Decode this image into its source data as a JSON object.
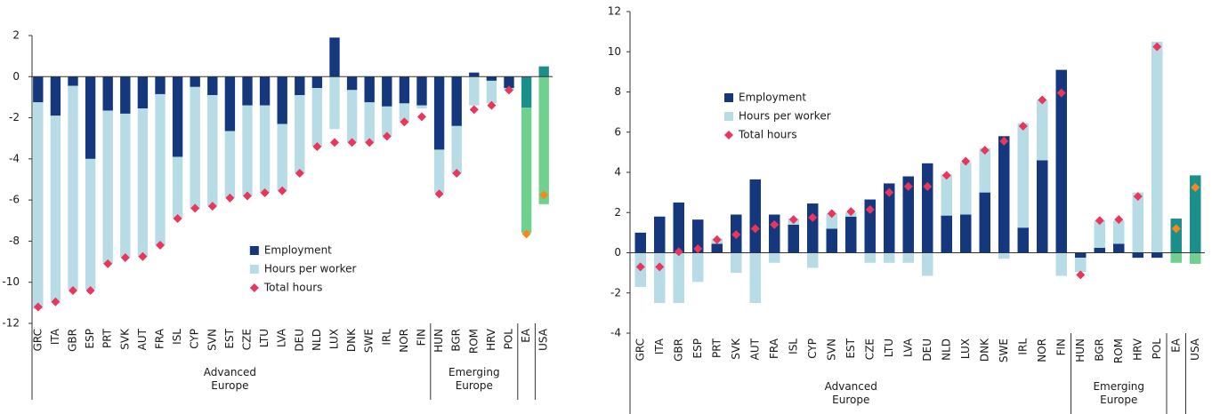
{
  "chart_data": [
    {
      "type": "bar",
      "stacked": true,
      "legend": "lower center",
      "categories": [
        "GRC",
        "ITA",
        "GBR",
        "ESP",
        "PRT",
        "SVK",
        "AUT",
        "FRA",
        "ISL",
        "CYP",
        "SVN",
        "EST",
        "CZE",
        "LTU",
        "LVA",
        "DEU",
        "NLD",
        "LUX",
        "DNK",
        "SWE",
        "IRL",
        "NOR",
        "FIN",
        "HUN",
        "BGR",
        "ROM",
        "HRV",
        "POL",
        "EA",
        "USA"
      ],
      "groups": [
        {
          "label": "Advanced Europe",
          "span": [
            0,
            22
          ]
        },
        {
          "label": "Emerging Europe",
          "span": [
            23,
            27
          ]
        }
      ],
      "ylim": [
        -12,
        2
      ],
      "yticks": [
        -12,
        -10,
        -8,
        -6,
        -4,
        -2,
        0,
        2
      ],
      "series": [
        {
          "name": "Employment",
          "kind": "bar",
          "color": "#14377d",
          "colors": [
            "#14377d",
            "#14377d",
            "#14377d",
            "#14377d",
            "#14377d",
            "#14377d",
            "#14377d",
            "#14377d",
            "#14377d",
            "#14377d",
            "#14377d",
            "#14377d",
            "#14377d",
            "#14377d",
            "#14377d",
            "#14377d",
            "#14377d",
            "#14377d",
            "#14377d",
            "#14377d",
            "#14377d",
            "#14377d",
            "#14377d",
            "#14377d",
            "#14377d",
            "#14377d",
            "#14377d",
            "#14377d",
            "#1b8f8c",
            "#1b8f8c"
          ],
          "values": [
            -1.25,
            -1.9,
            -0.45,
            -4.0,
            -1.65,
            -1.8,
            -1.55,
            -0.85,
            -3.9,
            -0.5,
            -0.9,
            -2.65,
            -1.4,
            -1.4,
            -2.3,
            -0.9,
            -0.55,
            1.9,
            -0.65,
            -1.25,
            -1.45,
            -1.3,
            -1.4,
            -3.55,
            -2.4,
            0.2,
            -0.2,
            -0.55,
            -1.5,
            0.5
          ]
        },
        {
          "name": "Hours per worker",
          "kind": "bar",
          "color": "#b8dce6",
          "colors": [
            "#b8dce6",
            "#b8dce6",
            "#b8dce6",
            "#b8dce6",
            "#b8dce6",
            "#b8dce6",
            "#b8dce6",
            "#b8dce6",
            "#b8dce6",
            "#b8dce6",
            "#b8dce6",
            "#b8dce6",
            "#b8dce6",
            "#b8dce6",
            "#b8dce6",
            "#b8dce6",
            "#b8dce6",
            "#b8dce6",
            "#b8dce6",
            "#b8dce6",
            "#b8dce6",
            "#b8dce6",
            "#b8dce6",
            "#b8dce6",
            "#b8dce6",
            "#b8dce6",
            "#b8dce6",
            "#b8dce6",
            "#6fd08f",
            "#6fd08f"
          ],
          "values": [
            -10.05,
            -9.0,
            -9.9,
            -6.35,
            -7.45,
            -7.0,
            -7.2,
            -7.35,
            -3.0,
            -5.95,
            -5.4,
            -3.25,
            -4.4,
            -4.25,
            -3.25,
            -3.8,
            -2.85,
            -2.55,
            -2.55,
            -1.95,
            -1.45,
            -0.9,
            -0.15,
            -2.1,
            -2.3,
            -1.4,
            -1.1,
            -0.1,
            -6.1,
            -6.2
          ]
        },
        {
          "name": "Total hours",
          "kind": "marker",
          "color": "#e8365d",
          "colors": [
            "#e8365d",
            "#e8365d",
            "#e8365d",
            "#e8365d",
            "#e8365d",
            "#e8365d",
            "#e8365d",
            "#e8365d",
            "#e8365d",
            "#e8365d",
            "#e8365d",
            "#e8365d",
            "#e8365d",
            "#e8365d",
            "#e8365d",
            "#e8365d",
            "#e8365d",
            "#e8365d",
            "#e8365d",
            "#e8365d",
            "#e8365d",
            "#e8365d",
            "#e8365d",
            "#e8365d",
            "#e8365d",
            "#e8365d",
            "#e8365d",
            "#e8365d",
            "#f28a1e",
            "#f28a1e"
          ],
          "values": [
            -11.2,
            -10.95,
            -10.4,
            -10.4,
            -9.1,
            -8.8,
            -8.75,
            -8.2,
            -6.9,
            -6.4,
            -6.3,
            -5.9,
            -5.8,
            -5.65,
            -5.55,
            -4.7,
            -3.4,
            -3.2,
            -3.2,
            -3.2,
            -2.9,
            -2.2,
            -1.95,
            -5.7,
            -4.7,
            -1.6,
            -1.4,
            -0.65,
            -7.65,
            -5.75
          ]
        }
      ]
    },
    {
      "type": "bar",
      "stacked": true,
      "legend": "upper left",
      "categories": [
        "GRC",
        "ITA",
        "GBR",
        "ESP",
        "PRT",
        "SVK",
        "AUT",
        "FRA",
        "ISL",
        "CYP",
        "SVN",
        "EST",
        "CZE",
        "LTU",
        "LVA",
        "DEU",
        "NLD",
        "LUX",
        "DNK",
        "SWE",
        "IRL",
        "NOR",
        "FIN",
        "HUN",
        "BGR",
        "ROM",
        "HRV",
        "POL",
        "EA",
        "USA"
      ],
      "groups": [
        {
          "label": "Advanced Europe",
          "span": [
            0,
            22
          ]
        },
        {
          "label": "Emerging Europe",
          "span": [
            23,
            27
          ]
        }
      ],
      "ylim": [
        -4,
        12
      ],
      "yticks": [
        -4,
        -2,
        0,
        2,
        4,
        6,
        8,
        10,
        12
      ],
      "series": [
        {
          "name": "Employment",
          "kind": "bar",
          "color": "#14377d",
          "colors": [
            "#14377d",
            "#14377d",
            "#14377d",
            "#14377d",
            "#14377d",
            "#14377d",
            "#14377d",
            "#14377d",
            "#14377d",
            "#14377d",
            "#14377d",
            "#14377d",
            "#14377d",
            "#14377d",
            "#14377d",
            "#14377d",
            "#14377d",
            "#14377d",
            "#14377d",
            "#14377d",
            "#14377d",
            "#14377d",
            "#14377d",
            "#14377d",
            "#14377d",
            "#14377d",
            "#14377d",
            "#14377d",
            "#1b8f8c",
            "#1b8f8c"
          ],
          "values": [
            1.0,
            1.8,
            2.5,
            1.65,
            0.45,
            1.9,
            3.65,
            1.9,
            1.4,
            2.45,
            1.2,
            1.8,
            2.65,
            3.45,
            3.8,
            4.45,
            1.85,
            1.9,
            3.0,
            5.8,
            1.25,
            4.6,
            9.1,
            -0.25,
            0.25,
            0.45,
            -0.25,
            -0.25,
            1.7,
            3.85
          ]
        },
        {
          "name": "Hours per worker",
          "kind": "bar",
          "color": "#b8dce6",
          "colors": [
            "#b8dce6",
            "#b8dce6",
            "#b8dce6",
            "#b8dce6",
            "#b8dce6",
            "#b8dce6",
            "#b8dce6",
            "#b8dce6",
            "#b8dce6",
            "#b8dce6",
            "#b8dce6",
            "#b8dce6",
            "#b8dce6",
            "#b8dce6",
            "#b8dce6",
            "#b8dce6",
            "#b8dce6",
            "#b8dce6",
            "#b8dce6",
            "#b8dce6",
            "#b8dce6",
            "#b8dce6",
            "#b8dce6",
            "#b8dce6",
            "#b8dce6",
            "#b8dce6",
            "#b8dce6",
            "#b8dce6",
            "#6fd08f",
            "#6fd08f"
          ],
          "values": [
            -1.7,
            -2.5,
            -2.5,
            -1.45,
            0.25,
            -1.0,
            -2.5,
            -0.5,
            0.3,
            -0.75,
            0.75,
            0.2,
            -0.5,
            -0.5,
            -0.5,
            -1.15,
            2.05,
            2.6,
            2.2,
            -0.3,
            5.2,
            3.0,
            -1.15,
            -0.7,
            1.35,
            1.15,
            3.0,
            10.5,
            -0.5,
            -0.55
          ]
        },
        {
          "name": "Total hours",
          "kind": "marker",
          "color": "#e8365d",
          "colors": [
            "#e8365d",
            "#e8365d",
            "#e8365d",
            "#e8365d",
            "#e8365d",
            "#e8365d",
            "#e8365d",
            "#e8365d",
            "#e8365d",
            "#e8365d",
            "#e8365d",
            "#e8365d",
            "#e8365d",
            "#e8365d",
            "#e8365d",
            "#e8365d",
            "#e8365d",
            "#e8365d",
            "#e8365d",
            "#e8365d",
            "#e8365d",
            "#e8365d",
            "#e8365d",
            "#e8365d",
            "#e8365d",
            "#e8365d",
            "#e8365d",
            "#e8365d",
            "#f28a1e",
            "#f28a1e"
          ],
          "values": [
            -0.7,
            -0.7,
            0.05,
            0.2,
            0.65,
            0.9,
            1.2,
            1.4,
            1.65,
            1.75,
            1.95,
            2.05,
            2.15,
            3.0,
            3.3,
            3.3,
            3.85,
            4.55,
            5.1,
            5.55,
            6.3,
            7.6,
            7.95,
            -1.1,
            1.6,
            1.65,
            2.8,
            10.25,
            1.2,
            3.25
          ]
        }
      ]
    }
  ]
}
